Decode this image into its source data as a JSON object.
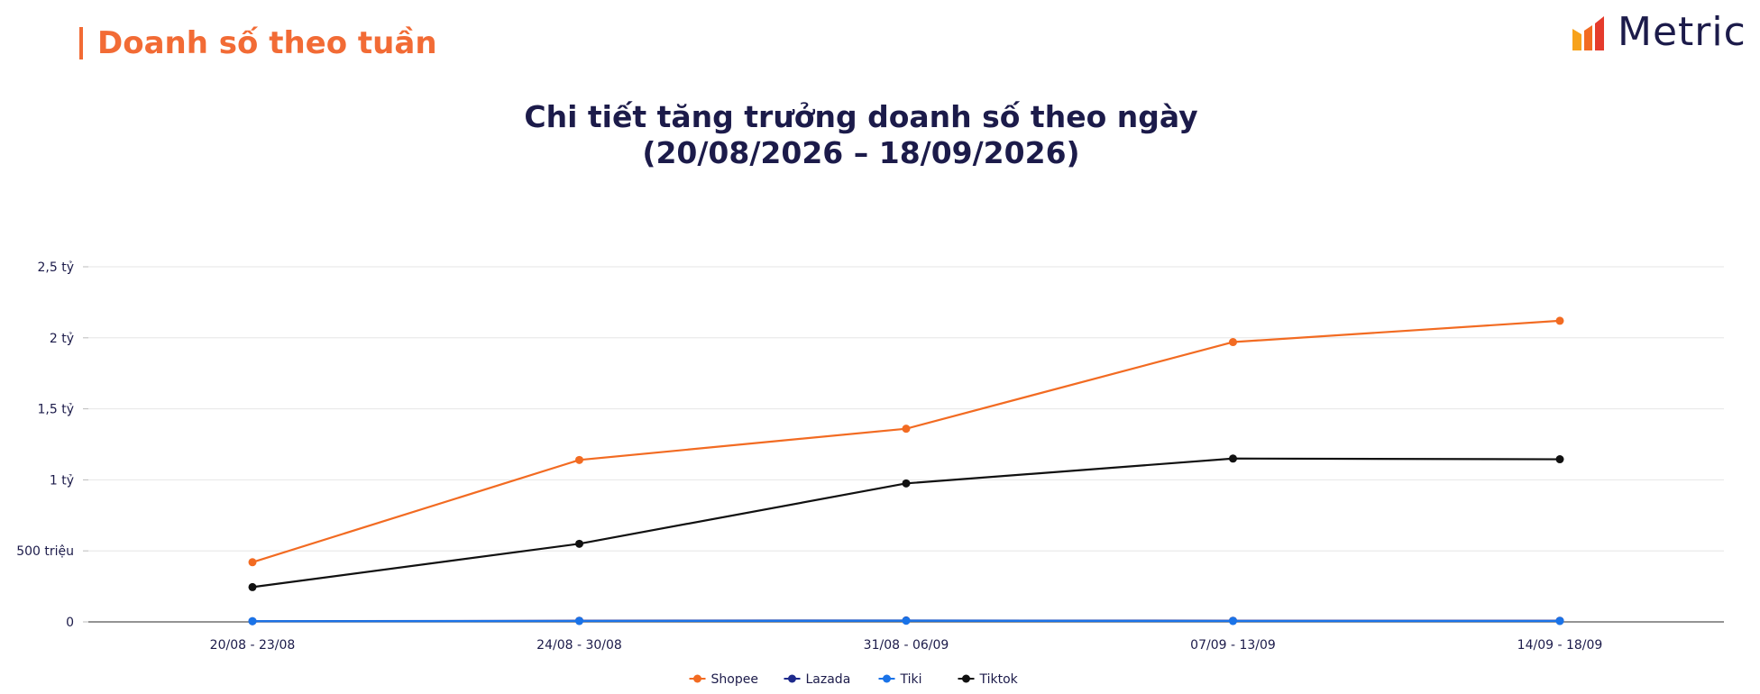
{
  "header": {
    "section_title": "Doanh số theo tuần",
    "logo_text": "Metric"
  },
  "colors": {
    "accent": "#f26b35",
    "navy": "#1c1b4a"
  },
  "chart_data": {
    "type": "line",
    "title_line1": "Chi tiết tăng trưởng doanh số theo ngày",
    "title_line2": "(20/08/2026 – 18/09/2026)",
    "categories": [
      "20/08 - 23/08",
      "24/08 - 30/08",
      "31/08 - 06/09",
      "07/09 - 13/09",
      "14/09 - 18/09"
    ],
    "y_ticks": [
      {
        "value": 0,
        "label": "0"
      },
      {
        "value": 500000000,
        "label": "500 triệu"
      },
      {
        "value": 1000000000,
        "label": "1 tỷ"
      },
      {
        "value": 1500000000,
        "label": "1,5 tỷ"
      },
      {
        "value": 2000000000,
        "label": "2 tỷ"
      },
      {
        "value": 2500000000,
        "label": "2,5 tỷ"
      }
    ],
    "ylim": [
      0,
      2500000000
    ],
    "grid": true,
    "legend_position": "bottom-center",
    "series": [
      {
        "name": "Shopee",
        "color": "#f26b22",
        "values": [
          420000000,
          1140000000,
          1360000000,
          1970000000,
          2120000000
        ]
      },
      {
        "name": "Lazada",
        "color": "#1e2a8c",
        "values": [
          5000000,
          8000000,
          10000000,
          8000000,
          8000000
        ]
      },
      {
        "name": "Tiki",
        "color": "#1a73e8",
        "values": [
          5000000,
          6000000,
          8000000,
          6000000,
          6000000
        ]
      },
      {
        "name": "Tiktok",
        "color": "#111111",
        "values": [
          245000000,
          550000000,
          975000000,
          1150000000,
          1145000000
        ]
      }
    ]
  }
}
